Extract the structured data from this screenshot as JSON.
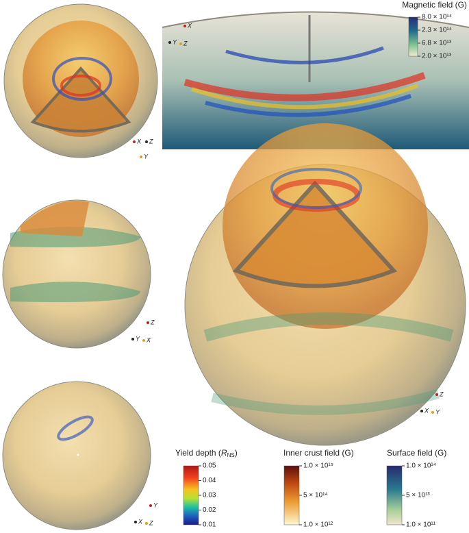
{
  "magnetic_colorbar": {
    "title": "Magnetic field (G)",
    "ticks": [
      "8.0 × 10¹⁴",
      "2.3 × 10¹⁴",
      "6.8 × 10¹³",
      "2.0 × 10¹³"
    ]
  },
  "yield_colorbar": {
    "title_start": "Yield depth (",
    "title_symbol": "R",
    "title_subscript": "NS",
    "title_end": ")",
    "ticks": [
      "0.05",
      "0.04",
      "0.03",
      "0.02",
      "0.01"
    ]
  },
  "inner_crust_colorbar": {
    "title": "Inner crust field (G)",
    "ticks": [
      "1.0 × 10¹⁵",
      "5 × 10¹⁴",
      "1.0 × 10¹²"
    ]
  },
  "surface_colorbar": {
    "title": "Surface field (G)",
    "ticks": [
      "1.0 × 10¹⁴",
      "5 × 10¹³",
      "1.0 × 10¹¹"
    ]
  },
  "triads": [
    {
      "labels": [
        "X",
        "Z",
        "Y"
      ]
    },
    {
      "labels": [
        "X",
        "Y",
        "Z"
      ]
    },
    {
      "labels": [
        "Z",
        "Y",
        "X"
      ]
    },
    {
      "labels": [
        "Z",
        "X",
        "Y"
      ]
    },
    {
      "labels": [
        "Y",
        "X",
        "Z"
      ]
    }
  ]
}
